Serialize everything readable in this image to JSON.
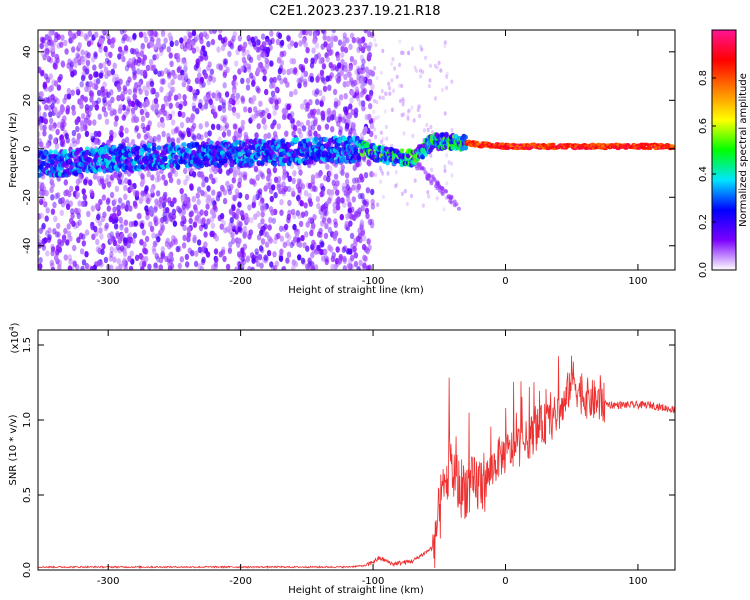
{
  "title": "C2E1.2023.237.19.21.R18",
  "chart_data": [
    {
      "type": "heatmap",
      "xlabel": "Height of straight line (km)",
      "ylabel": "Frequency (Hz)",
      "xlim": [
        -353,
        128
      ],
      "ylim": [
        -50,
        49
      ],
      "x_ticks": [
        -300,
        -200,
        -100,
        0,
        100
      ],
      "y_ticks": [
        -40,
        -20,
        0,
        20,
        40
      ],
      "colorbar": {
        "label": "Normalized spectral amplitude",
        "range": [
          0,
          1
        ],
        "ticks": [
          "0.0",
          "0.2",
          "0.4",
          "0.6",
          "0.8"
        ],
        "colors": [
          "#ffffff",
          "#7a00ff",
          "#0000ff",
          "#00e5ff",
          "#00ff00",
          "#ffff00",
          "#ff8000",
          "#ff0000",
          "#ff1493"
        ]
      },
      "ridge": [
        {
          "x": -330,
          "f": -6
        },
        {
          "x": -300,
          "f": -4
        },
        {
          "x": -250,
          "f": -3
        },
        {
          "x": -200,
          "f": -2
        },
        {
          "x": -150,
          "f": -1
        },
        {
          "x": -110,
          "f": 0
        },
        {
          "x": -90,
          "f": -3
        },
        {
          "x": -70,
          "f": -4
        },
        {
          "x": -55,
          "f": 3
        },
        {
          "x": -40,
          "f": 3
        },
        {
          "x": -25,
          "f": 2
        },
        {
          "x": 0,
          "f": 1
        },
        {
          "x": 50,
          "f": 1
        },
        {
          "x": 100,
          "f": 1
        },
        {
          "x": 128,
          "f": 1
        }
      ]
    },
    {
      "type": "line",
      "xlabel": "Height of straight line (km)",
      "ylabel": "SNR (10 * v/v)",
      "y_multiplier": "(x10",
      "y_multiplier_exp": "4",
      "xlim": [
        -353,
        128
      ],
      "ylim": [
        0,
        1.6
      ],
      "x_ticks": [
        -300,
        -200,
        -100,
        0,
        100
      ],
      "y_ticks": [
        "0.0",
        "0.5",
        "1.0",
        "1.5"
      ],
      "color": "#ee3030",
      "series": [
        {
          "x": [
            -353,
            -300,
            -200,
            -120,
            -105,
            -95,
            -85,
            -70,
            -55,
            -48,
            -42,
            -35,
            -25,
            -15,
            -5,
            5,
            15,
            25,
            35,
            45,
            50,
            55,
            60,
            70,
            80,
            90,
            100,
            110,
            120,
            128
          ],
          "y": [
            0.02,
            0.02,
            0.02,
            0.02,
            0.03,
            0.08,
            0.04,
            0.06,
            0.15,
            0.45,
            0.7,
            0.55,
            0.55,
            0.6,
            0.75,
            0.8,
            0.85,
            0.95,
            1.0,
            1.1,
            1.3,
            1.2,
            1.15,
            1.12,
            1.1,
            1.1,
            1.1,
            1.1,
            1.08,
            1.07
          ]
        }
      ]
    }
  ]
}
